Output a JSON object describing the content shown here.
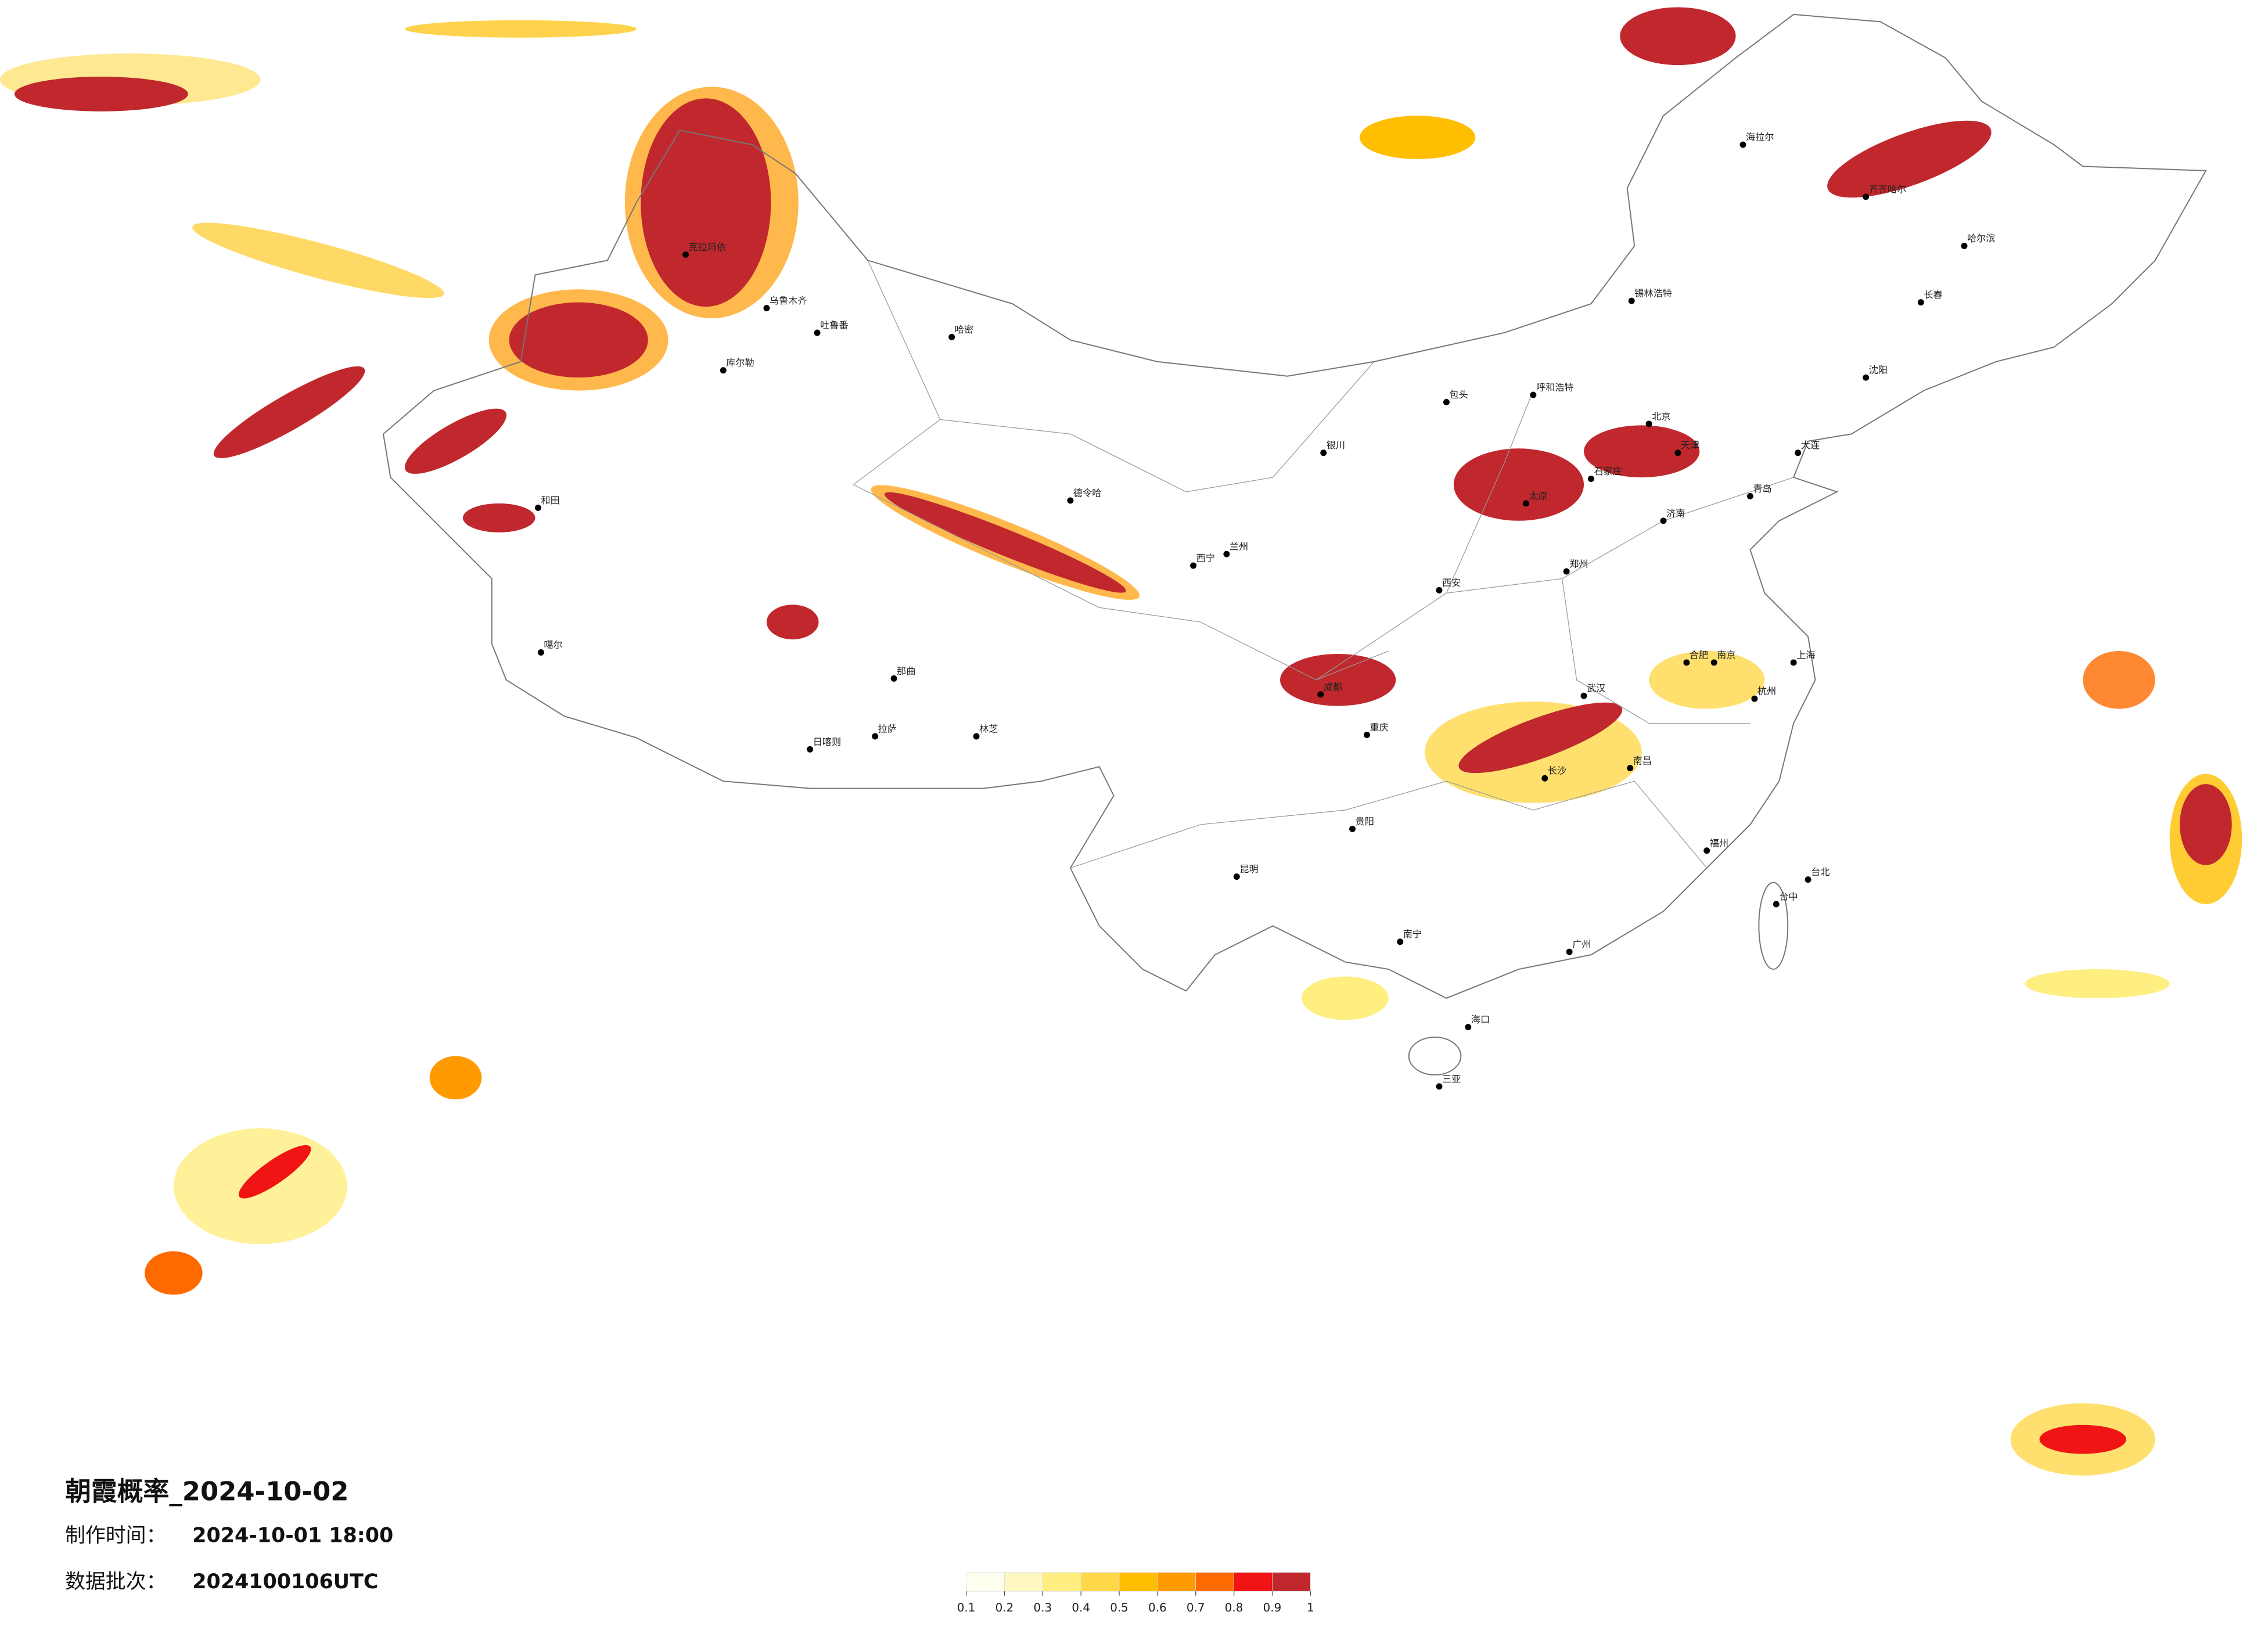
{
  "title": "朝霞概率_2024-10-02",
  "made_label": "制作时间：",
  "made_time": "2024-10-01 18:00",
  "batch_label": "数据批次：",
  "batch": "2024100106UTC",
  "legend": {
    "ticks": [
      0.1,
      0.2,
      0.3,
      0.4,
      0.5,
      0.6,
      0.7,
      0.8,
      0.9,
      1
    ],
    "colors": [
      "#fffff0",
      "#fff7c0",
      "#ffee80",
      "#ffd84a",
      "#ffbf00",
      "#ff9a00",
      "#ff6a00",
      "#f01414",
      "#c0282d"
    ]
  },
  "cities": [
    "克拉玛依",
    "乌鲁木齐",
    "吐鲁番",
    "哈密",
    "库尔勒",
    "和田",
    "噶尔",
    "日喀则",
    "拉萨",
    "林芝",
    "那曲",
    "德令哈",
    "西宁",
    "兰州",
    "银川",
    "呼和浩特",
    "包头",
    "北京",
    "天津",
    "石家庄",
    "太原",
    "济南",
    "郑州",
    "西安",
    "成都",
    "重庆",
    "武汉",
    "长沙",
    "南昌",
    "合肥",
    "南京",
    "上海",
    "杭州",
    "福州",
    "台北",
    "台中",
    "广州",
    "南宁",
    "海口",
    "三亚",
    "昆明",
    "贵阳",
    "哈尔滨",
    "长春",
    "沈阳",
    "大连",
    "海拉尔",
    "锡林浩特",
    "齐齐哈尔",
    "青岛"
  ]
}
